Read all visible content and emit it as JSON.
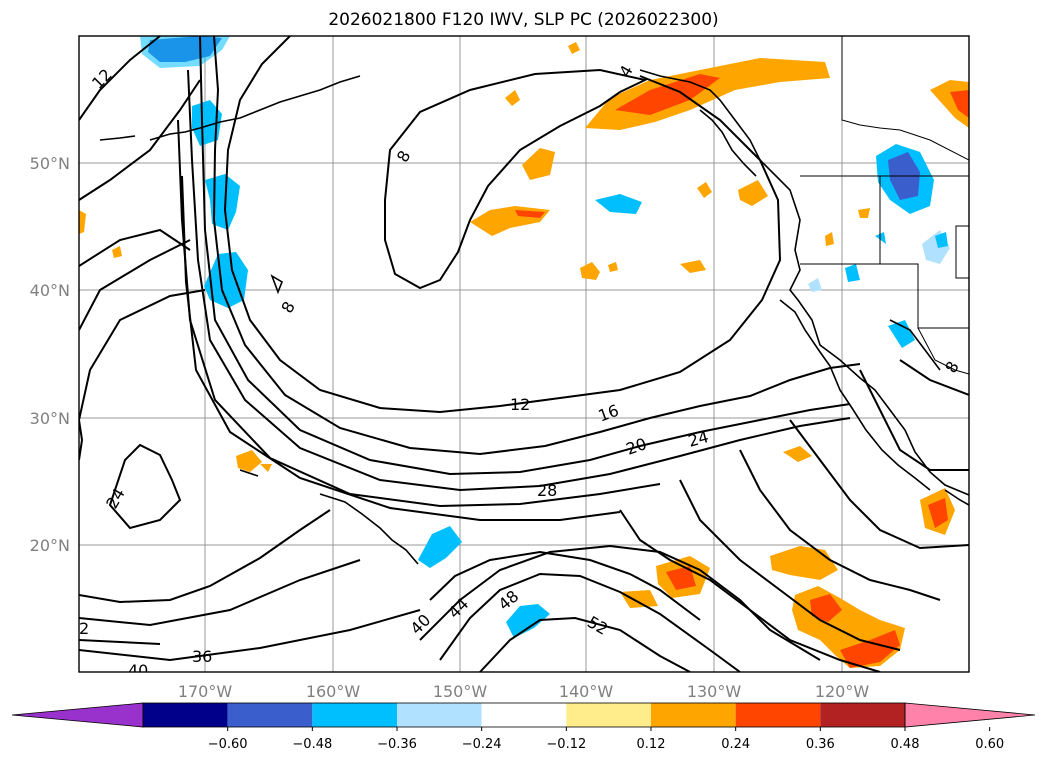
{
  "title": "2026021800 F120 IWV, SLP PC (2026022300)",
  "lon_ticks": [
    "170°W",
    "160°W",
    "150°W",
    "140°W",
    "130°W",
    "120°W"
  ],
  "lat_ticks": [
    "50°N",
    "40°N",
    "30°N",
    "20°N"
  ],
  "contour_labels": [
    "12",
    "8",
    "8",
    "12",
    "16",
    "20",
    "24",
    "24",
    "28",
    "36",
    "40",
    "40",
    "44",
    "48",
    "52",
    "2",
    "4",
    "8"
  ],
  "colorbar": {
    "colors": [
      "#9932cc",
      "#00008b",
      "#3a5fcd",
      "#00bfff",
      "#b0e2ff",
      "#ffffff",
      "#ffec8b",
      "#ffa500",
      "#ff4500",
      "#b22222",
      "#ff82ab"
    ],
    "ticks": [
      "−0.60",
      "−0.48",
      "−0.36",
      "−0.24",
      "−0.12",
      "0.12",
      "0.24",
      "0.36",
      "0.48",
      "0.60"
    ]
  }
}
